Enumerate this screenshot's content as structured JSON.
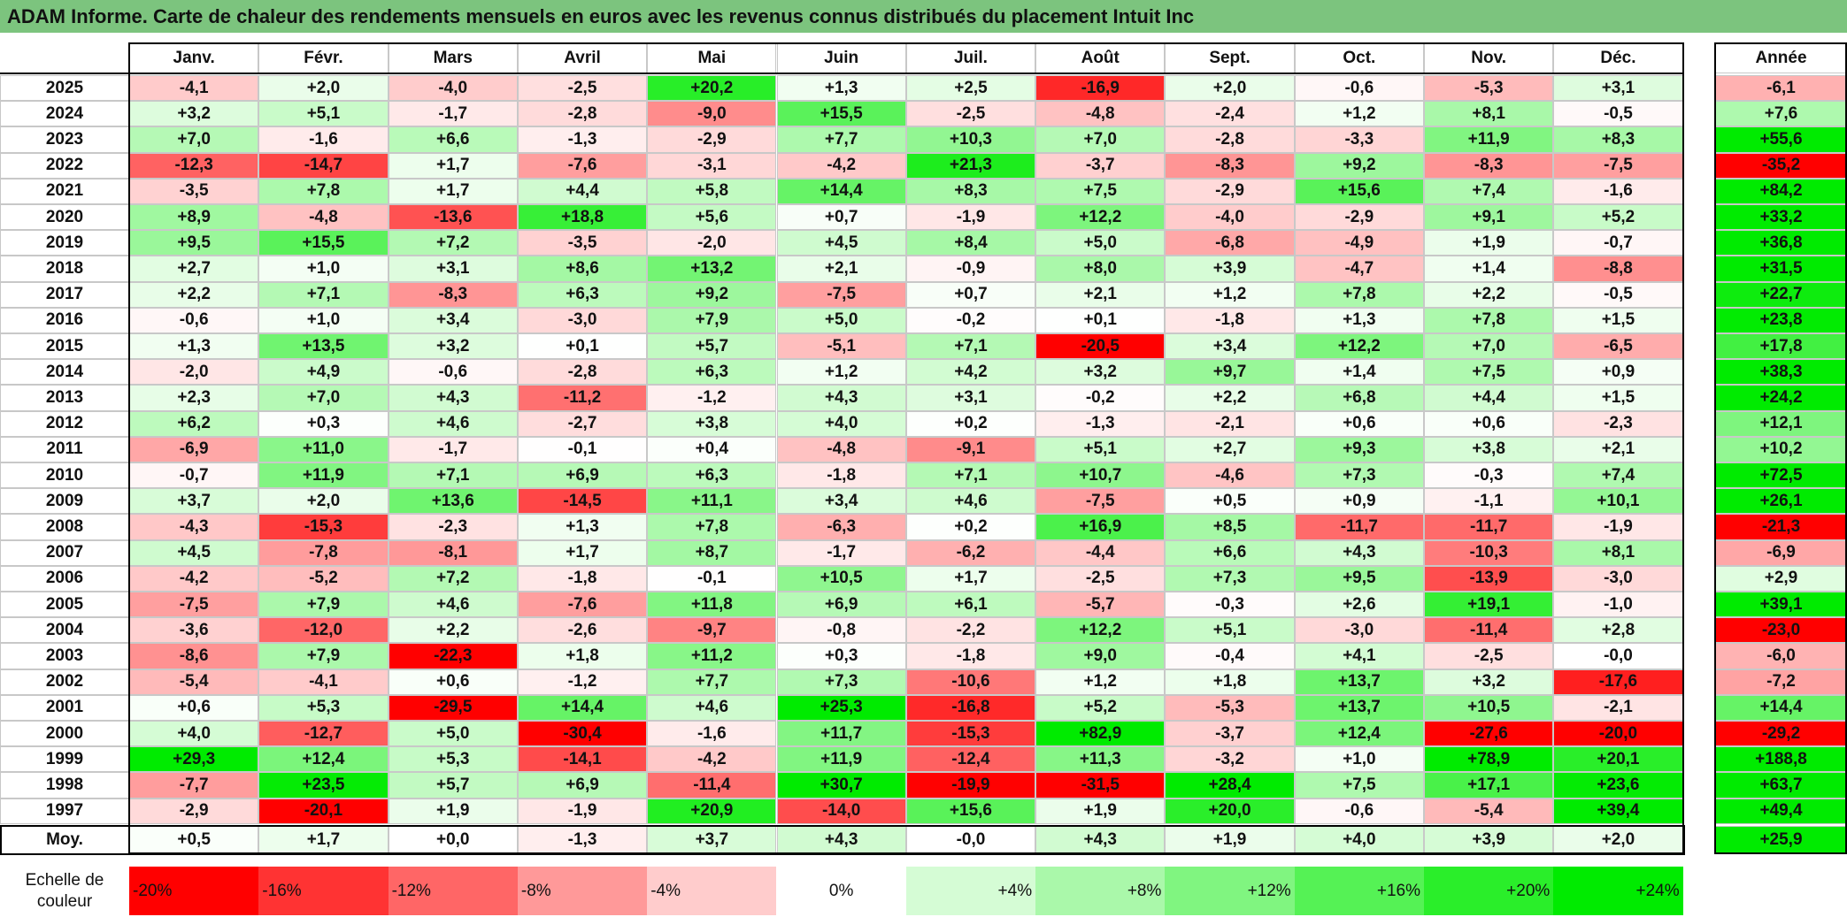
{
  "title": "ADAM Informe. Carte de chaleur des rendements mensuels en euros avec les revenus connus distribués du placement Intuit Inc",
  "table": {
    "columns": [
      "Janv.",
      "Févr.",
      "Mars",
      "Avril",
      "Mai",
      "Juin",
      "Juil.",
      "Août",
      "Sept.",
      "Oct.",
      "Nov.",
      "Déc."
    ],
    "total_column": "Année",
    "rows": [
      {
        "label": "2025",
        "cells": [
          "-4,1",
          "+2,0",
          "-4,0",
          "-2,5",
          "+20,2",
          "+1,3",
          "+2,5",
          "-16,9",
          "+2,0",
          "-0,6",
          "-5,3",
          "+3,1"
        ],
        "total": "-6,1"
      },
      {
        "label": "2024",
        "cells": [
          "+3,2",
          "+5,1",
          "-1,7",
          "-2,8",
          "-9,0",
          "+15,5",
          "-2,5",
          "-4,8",
          "-2,4",
          "+1,2",
          "+8,1",
          "-0,5"
        ],
        "total": "+7,6"
      },
      {
        "label": "2023",
        "cells": [
          "+7,0",
          "-1,6",
          "+6,6",
          "-1,3",
          "-2,9",
          "+7,7",
          "+10,3",
          "+7,0",
          "-2,8",
          "-3,3",
          "+11,9",
          "+8,3"
        ],
        "total": "+55,6"
      },
      {
        "label": "2022",
        "cells": [
          "-12,3",
          "-14,7",
          "+1,7",
          "-7,6",
          "-3,1",
          "-4,2",
          "+21,3",
          "-3,7",
          "-8,3",
          "+9,2",
          "-8,3",
          "-7,5"
        ],
        "total": "-35,2"
      },
      {
        "label": "2021",
        "cells": [
          "-3,5",
          "+7,8",
          "+1,7",
          "+4,4",
          "+5,8",
          "+14,4",
          "+8,3",
          "+7,5",
          "-2,9",
          "+15,6",
          "+7,4",
          "-1,6"
        ],
        "total": "+84,2"
      },
      {
        "label": "2020",
        "cells": [
          "+8,9",
          "-4,8",
          "-13,6",
          "+18,8",
          "+5,6",
          "+0,7",
          "-1,9",
          "+12,2",
          "-4,0",
          "-2,9",
          "+9,1",
          "+5,2"
        ],
        "total": "+33,2"
      },
      {
        "label": "2019",
        "cells": [
          "+9,5",
          "+15,5",
          "+7,2",
          "-3,5",
          "-2,0",
          "+4,5",
          "+8,4",
          "+5,0",
          "-6,8",
          "-4,9",
          "+1,9",
          "-0,7"
        ],
        "total": "+36,8"
      },
      {
        "label": "2018",
        "cells": [
          "+2,7",
          "+1,0",
          "+3,1",
          "+8,6",
          "+13,2",
          "+2,1",
          "-0,9",
          "+8,0",
          "+3,9",
          "-4,7",
          "+1,4",
          "-8,8"
        ],
        "total": "+31,5"
      },
      {
        "label": "2017",
        "cells": [
          "+2,2",
          "+7,1",
          "-8,3",
          "+6,3",
          "+9,2",
          "-7,5",
          "+0,7",
          "+2,1",
          "+1,2",
          "+7,8",
          "+2,2",
          "-0,5"
        ],
        "total": "+22,7"
      },
      {
        "label": "2016",
        "cells": [
          "-0,6",
          "+1,0",
          "+3,4",
          "-3,0",
          "+7,9",
          "+5,0",
          "-0,2",
          "+0,1",
          "-1,8",
          "+1,3",
          "+7,8",
          "+1,5"
        ],
        "total": "+23,8"
      },
      {
        "label": "2015",
        "cells": [
          "+1,3",
          "+13,5",
          "+3,2",
          "+0,1",
          "+5,7",
          "-5,1",
          "+7,1",
          "-20,5",
          "+3,4",
          "+12,2",
          "+7,0",
          "-6,5"
        ],
        "total": "+17,8"
      },
      {
        "label": "2014",
        "cells": [
          "-2,0",
          "+4,9",
          "-0,6",
          "-2,8",
          "+6,3",
          "+1,2",
          "+4,2",
          "+3,2",
          "+9,7",
          "+1,4",
          "+7,5",
          "+0,9"
        ],
        "total": "+38,3"
      },
      {
        "label": "2013",
        "cells": [
          "+2,3",
          "+7,0",
          "+4,3",
          "-11,2",
          "-1,2",
          "+4,3",
          "+3,1",
          "-0,2",
          "+2,2",
          "+6,8",
          "+4,4",
          "+1,5"
        ],
        "total": "+24,2"
      },
      {
        "label": "2012",
        "cells": [
          "+6,2",
          "+0,3",
          "+4,6",
          "-2,7",
          "+3,8",
          "+4,0",
          "+0,2",
          "-1,3",
          "-2,1",
          "+0,6",
          "+0,6",
          "-2,3"
        ],
        "total": "+12,1"
      },
      {
        "label": "2011",
        "cells": [
          "-6,9",
          "+11,0",
          "-1,7",
          "-0,1",
          "+0,4",
          "-4,8",
          "-9,1",
          "+5,1",
          "+2,7",
          "+9,3",
          "+3,8",
          "+2,1"
        ],
        "total": "+10,2"
      },
      {
        "label": "2010",
        "cells": [
          "-0,7",
          "+11,9",
          "+7,1",
          "+6,9",
          "+6,3",
          "-1,8",
          "+7,1",
          "+10,7",
          "-4,6",
          "+7,3",
          "-0,3",
          "+7,4"
        ],
        "total": "+72,5"
      },
      {
        "label": "2009",
        "cells": [
          "+3,7",
          "+2,0",
          "+13,6",
          "-14,5",
          "+11,1",
          "+3,4",
          "+4,6",
          "-7,5",
          "+0,5",
          "+0,9",
          "-1,1",
          "+10,1"
        ],
        "total": "+26,1"
      },
      {
        "label": "2008",
        "cells": [
          "-4,3",
          "-15,3",
          "-2,3",
          "+1,3",
          "+7,8",
          "-6,3",
          "+0,2",
          "+16,9",
          "+8,5",
          "-11,7",
          "-11,7",
          "-1,9"
        ],
        "total": "-21,3"
      },
      {
        "label": "2007",
        "cells": [
          "+4,5",
          "-7,8",
          "-8,1",
          "+1,7",
          "+8,7",
          "-1,7",
          "-6,2",
          "-4,4",
          "+6,6",
          "+4,3",
          "-10,3",
          "+8,1"
        ],
        "total": "-6,9"
      },
      {
        "label": "2006",
        "cells": [
          "-4,2",
          "-5,2",
          "+7,2",
          "-1,8",
          "-0,1",
          "+10,5",
          "+1,7",
          "-2,5",
          "+7,3",
          "+9,5",
          "-13,9",
          "-3,0"
        ],
        "total": "+2,9"
      },
      {
        "label": "2005",
        "cells": [
          "-7,5",
          "+7,9",
          "+4,6",
          "-7,6",
          "+11,8",
          "+6,9",
          "+6,1",
          "-5,7",
          "-0,3",
          "+2,6",
          "+19,1",
          "-1,0"
        ],
        "total": "+39,1"
      },
      {
        "label": "2004",
        "cells": [
          "-3,6",
          "-12,0",
          "+2,2",
          "-2,6",
          "-9,7",
          "-0,8",
          "-2,2",
          "+12,2",
          "+5,1",
          "-3,0",
          "-11,4",
          "+2,8"
        ],
        "total": "-23,0"
      },
      {
        "label": "2003",
        "cells": [
          "-8,6",
          "+7,9",
          "-22,3",
          "+1,8",
          "+11,2",
          "+0,3",
          "-1,8",
          "+9,0",
          "-0,4",
          "+4,1",
          "-2,5",
          "-0,0"
        ],
        "total": "-6,0"
      },
      {
        "label": "2002",
        "cells": [
          "-5,4",
          "-4,1",
          "+0,6",
          "-1,2",
          "+7,7",
          "+7,3",
          "-10,6",
          "+1,2",
          "+1,8",
          "+13,7",
          "+3,2",
          "-17,6"
        ],
        "total": "-7,2"
      },
      {
        "label": "2001",
        "cells": [
          "+0,6",
          "+5,3",
          "-29,5",
          "+14,4",
          "+4,6",
          "+25,3",
          "-16,8",
          "+5,2",
          "-5,3",
          "+13,7",
          "+10,5",
          "-2,1"
        ],
        "total": "+14,4"
      },
      {
        "label": "2000",
        "cells": [
          "+4,0",
          "-12,7",
          "+5,0",
          "-30,4",
          "-1,6",
          "+11,7",
          "-15,3",
          "+82,9",
          "-3,7",
          "+12,4",
          "-27,6",
          "-20,0"
        ],
        "total": "-29,2"
      },
      {
        "label": "1999",
        "cells": [
          "+29,3",
          "+12,4",
          "+5,3",
          "-14,1",
          "-4,2",
          "+11,9",
          "-12,4",
          "+11,3",
          "-3,2",
          "+1,0",
          "+78,9",
          "+20,1"
        ],
        "total": "+188,8"
      },
      {
        "label": "1998",
        "cells": [
          "-7,7",
          "+23,5",
          "+5,7",
          "+6,9",
          "-11,4",
          "+30,7",
          "-19,9",
          "-31,5",
          "+28,4",
          "+7,5",
          "+17,1",
          "+23,6"
        ],
        "total": "+63,7"
      },
      {
        "label": "1997",
        "cells": [
          "-2,9",
          "-20,1",
          "+1,9",
          "-1,9",
          "+20,9",
          "-14,0",
          "+15,6",
          "+1,9",
          "+20,0",
          "-0,6",
          "-5,4",
          "+39,4"
        ],
        "total": "+49,4"
      }
    ],
    "average": {
      "label": "Moy.",
      "cells": [
        "+0,5",
        "+1,7",
        "+0,0",
        "-1,3",
        "+3,7",
        "+4,3",
        "-0,0",
        "+4,3",
        "+1,9",
        "+4,0",
        "+3,9",
        "+2,0"
      ],
      "total": "+25,9"
    }
  },
  "scale": {
    "label": "Echelle de couleur",
    "steps": [
      "-20%",
      "-16%",
      "-12%",
      "-8%",
      "-4%",
      "0%",
      "+4%",
      "+8%",
      "+12%",
      "+16%",
      "+20%",
      "+24%"
    ]
  }
}
